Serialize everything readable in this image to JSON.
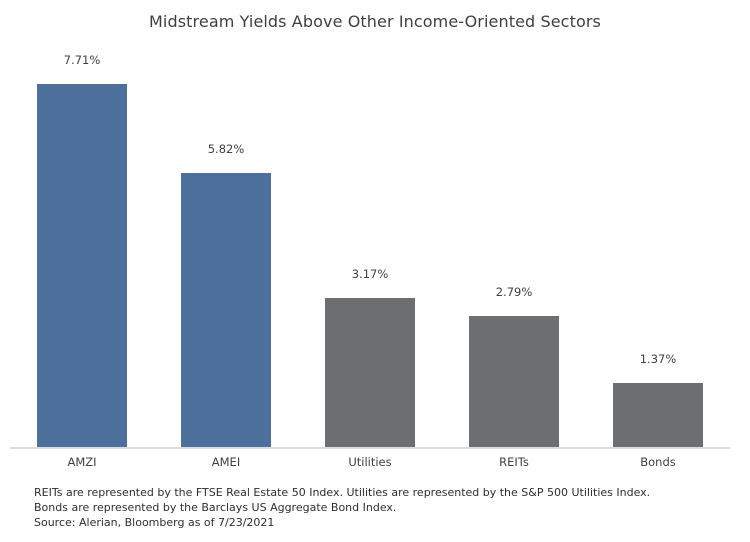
{
  "chart_data": {
    "type": "bar",
    "title": "Midstream Yields Above Other Income-Oriented Sectors",
    "categories": [
      "AMZI",
      "AMEI",
      "Utilities",
      "REITs",
      "Bonds"
    ],
    "values": [
      7.71,
      5.82,
      3.17,
      2.79,
      1.37
    ],
    "value_labels": [
      "7.71%",
      "5.82%",
      "3.17%",
      "2.79%",
      "1.37%"
    ],
    "bar_colors": [
      "#4D6F9C",
      "#4D6F9C",
      "#6C6E70",
      "#6C6E70",
      "#6C6E70"
    ],
    "xlabel": "",
    "ylabel": "",
    "ylim": [
      0,
      8.5
    ],
    "grid": false,
    "legend": "none",
    "data_labels": true
  },
  "footnotes": {
    "line1": "REITs are represented by the FTSE Real Estate 50 Index. Utilities are represented by the S&P 500 Utilities Index.",
    "line2": "Bonds are represented by the Barclays US Aggregate Bond Index.",
    "line3": "Source: Alerian, Bloomberg as of 7/23/2021"
  },
  "colors": {
    "midstream_blue": "#4D6F9C",
    "other_sectors_gray": "#6C6E70",
    "axis_line": "#DCDCDC",
    "text": "#3F3F3F",
    "background": "#FFFFFF"
  }
}
